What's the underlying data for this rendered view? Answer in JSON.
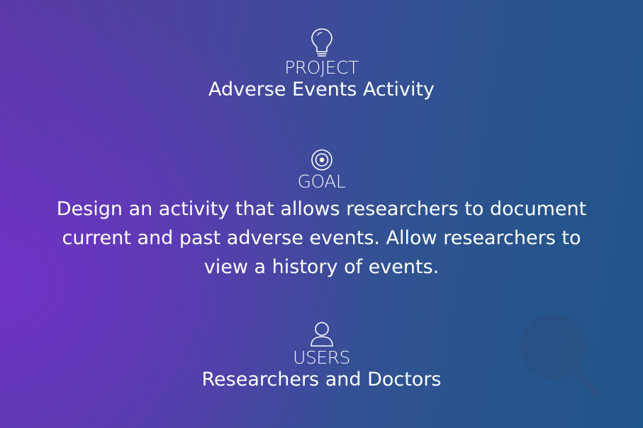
{
  "project": {
    "icon": "lightbulb-icon",
    "label": "PROJECT",
    "value": "Adverse Events Activity"
  },
  "goal": {
    "icon": "target-icon",
    "label": "GOAL",
    "value": "Design an activity that allows researchers to document current and past adverse events.  Allow researchers to view a history of events."
  },
  "users": {
    "icon": "user-icon",
    "label": "USERS",
    "value": "Researchers and Doctors"
  },
  "decoration": {
    "icon": "magnifier-icon"
  },
  "colors": {
    "background_left": "#6e34c6",
    "background_right": "#1f5488",
    "text": "#ffffff"
  }
}
